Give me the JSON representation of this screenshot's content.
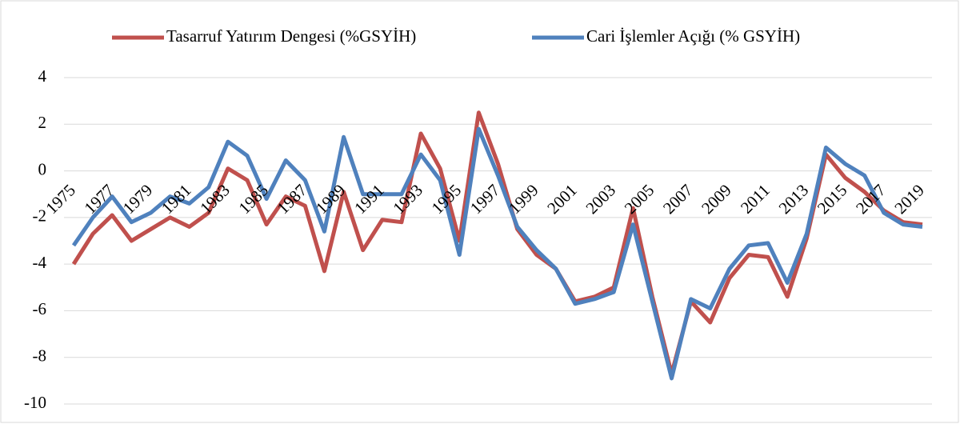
{
  "chart_data": {
    "type": "line",
    "categories": [
      "1975",
      null,
      "1977",
      null,
      "1979",
      null,
      "1981",
      null,
      "1983",
      null,
      "1985",
      null,
      "1987",
      null,
      "1989",
      null,
      "1991",
      null,
      "1993",
      null,
      "1995",
      null,
      "1997",
      null,
      "1999",
      null,
      "2001",
      null,
      "2003",
      null,
      "2005",
      null,
      "2007",
      null,
      "2009",
      null,
      "2011",
      null,
      "2013",
      null,
      "2015",
      null,
      "2017",
      null,
      "2019"
    ],
    "series": [
      {
        "name": "Tasarruf Yatırım Dengesi (%GSYİH)",
        "color": "#c0504d",
        "values": [
          -4.0,
          -2.7,
          -1.9,
          -3.0,
          -2.5,
          -2.0,
          -2.4,
          -1.8,
          0.1,
          -0.4,
          -2.3,
          -1.1,
          -1.5,
          -4.3,
          -0.9,
          -3.4,
          -2.1,
          -2.2,
          1.6,
          0.1,
          -3.0,
          2.5,
          0.3,
          -2.5,
          -3.6,
          -4.2,
          -5.6,
          -5.4,
          -5.0,
          -1.6,
          -5.4,
          -8.7,
          -5.6,
          -6.5,
          -4.6,
          -3.6,
          -3.7,
          -5.4,
          -2.9,
          0.7,
          -0.3,
          -0.9,
          -1.7,
          -2.2,
          -2.3
        ]
      },
      {
        "name": "Cari İşlemler Açığı (% GSYİH)",
        "color": "#4f81bd",
        "values": [
          -3.2,
          -2.0,
          -1.1,
          -2.2,
          -1.8,
          -1.1,
          -1.4,
          -0.7,
          1.25,
          0.65,
          -1.2,
          0.45,
          -0.4,
          -2.6,
          1.45,
          -1.0,
          -1.0,
          -1.0,
          0.7,
          -0.4,
          -3.6,
          1.8,
          -0.2,
          -2.4,
          -3.4,
          -4.2,
          -5.7,
          -5.5,
          -5.2,
          -2.3,
          -5.6,
          -8.9,
          -5.5,
          -5.9,
          -4.2,
          -3.2,
          -3.1,
          -4.8,
          -2.7,
          1.0,
          0.3,
          -0.2,
          -1.8,
          -2.3,
          -2.4
        ]
      }
    ],
    "ylim": [
      -10,
      4
    ],
    "yticks": [
      -10,
      -8,
      -6,
      -4,
      -2,
      0,
      2,
      4
    ],
    "grid": true,
    "legend": "top"
  }
}
